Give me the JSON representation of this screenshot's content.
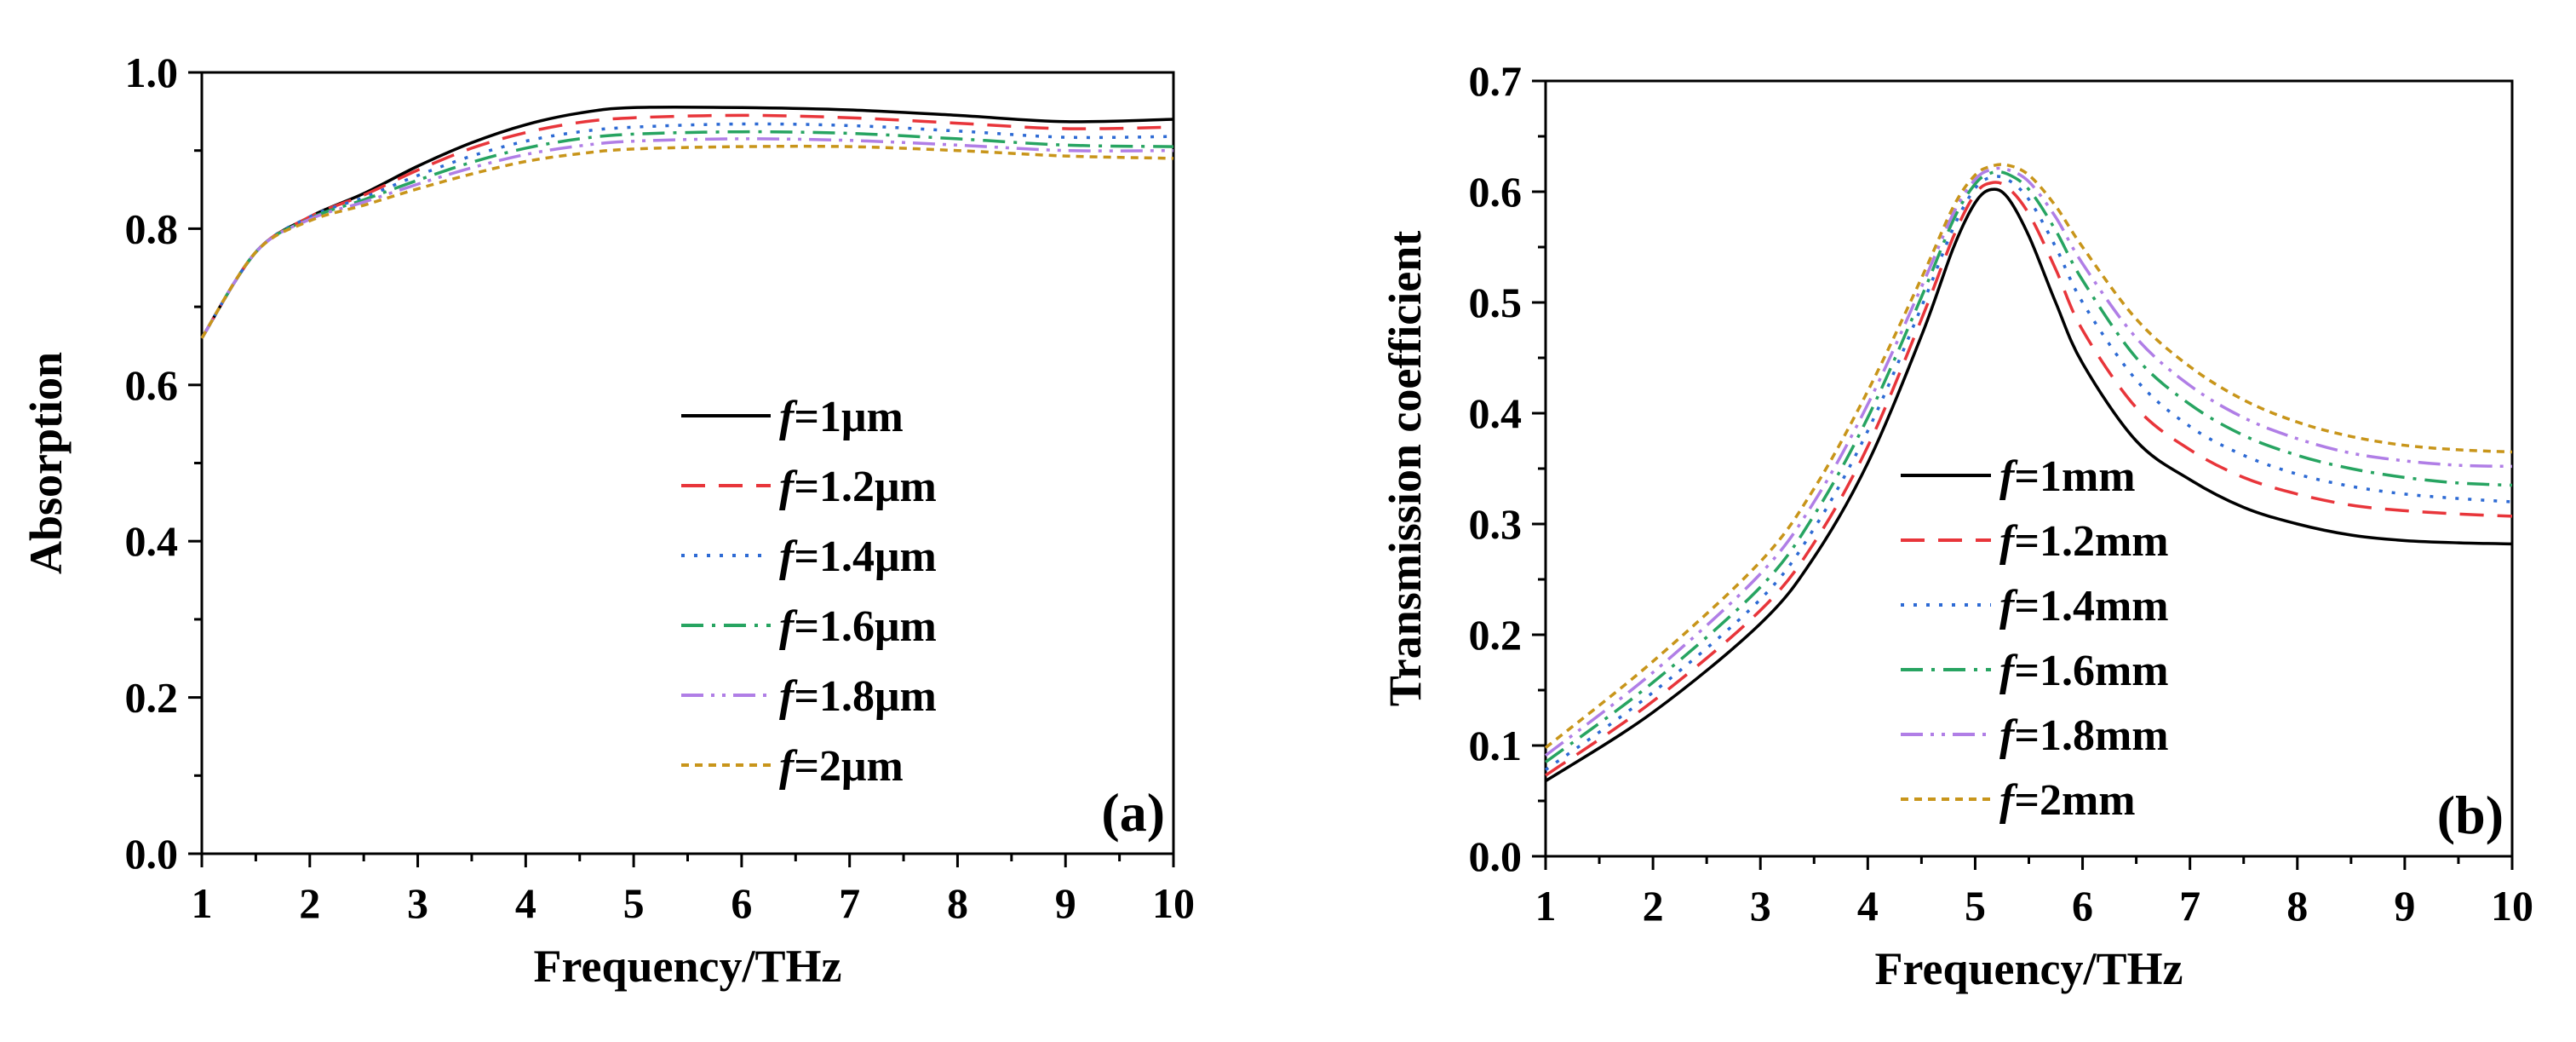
{
  "chart_data": [
    {
      "type": "line",
      "panel_label": "(a)",
      "xlabel": "Frequency/THz",
      "ylabel": "Absorption",
      "xlim": [
        1,
        10
      ],
      "ylim": [
        0.0,
        1.0
      ],
      "xticks": [
        1,
        2,
        3,
        4,
        5,
        6,
        7,
        8,
        9,
        10
      ],
      "xtick_labels": [
        "1",
        "2",
        "3",
        "4",
        "5",
        "6",
        "7",
        "8",
        "9",
        "10"
      ],
      "yticks": [
        0.0,
        0.2,
        0.4,
        0.6,
        0.8,
        1.0
      ],
      "ytick_labels": [
        "0.0",
        "0.2",
        "0.4",
        "0.6",
        "0.8",
        "1.0"
      ],
      "legend_position": "center-right",
      "x": [
        1,
        1.5,
        2,
        2.5,
        3,
        3.5,
        4,
        4.5,
        5,
        6,
        7,
        8,
        9,
        10
      ],
      "series": [
        {
          "name": "f",
          "label_rest": "=1μm",
          "color": "#000000",
          "dash": "",
          "values": [
            0.66,
            0.77,
            0.815,
            0.845,
            0.88,
            0.91,
            0.933,
            0.948,
            0.955,
            0.955,
            0.952,
            0.945,
            0.937,
            0.94
          ]
        },
        {
          "name": "f",
          "label_rest": "=1.2μm",
          "color": "#e8353a",
          "dash": "28,16",
          "values": [
            0.66,
            0.77,
            0.815,
            0.843,
            0.875,
            0.903,
            0.923,
            0.936,
            0.942,
            0.945,
            0.942,
            0.935,
            0.928,
            0.93
          ]
        },
        {
          "name": "f",
          "label_rest": "=1.4μm",
          "color": "#2d6ad4",
          "dash": "4,11",
          "values": [
            0.66,
            0.77,
            0.815,
            0.84,
            0.868,
            0.893,
            0.912,
            0.924,
            0.93,
            0.934,
            0.932,
            0.925,
            0.917,
            0.918
          ]
        },
        {
          "name": "f",
          "label_rest": "=1.6μm",
          "color": "#27a461",
          "dash": "26,10,4,10",
          "values": [
            0.66,
            0.77,
            0.813,
            0.837,
            0.862,
            0.885,
            0.903,
            0.915,
            0.921,
            0.924,
            0.922,
            0.915,
            0.907,
            0.905
          ]
        },
        {
          "name": "f",
          "label_rest": "=1.8μm",
          "color": "#b07ee6",
          "dash": "26,9,4,9,4,9",
          "values": [
            0.66,
            0.77,
            0.812,
            0.834,
            0.857,
            0.878,
            0.895,
            0.906,
            0.912,
            0.915,
            0.913,
            0.907,
            0.9,
            0.9
          ]
        },
        {
          "name": "f",
          "label_rest": "=2μm",
          "color": "#c8951a",
          "dash": "9,7",
          "values": [
            0.66,
            0.77,
            0.81,
            0.83,
            0.851,
            0.87,
            0.886,
            0.896,
            0.902,
            0.905,
            0.905,
            0.9,
            0.893,
            0.89
          ]
        }
      ]
    },
    {
      "type": "line",
      "panel_label": "(b)",
      "xlabel": "Frequency/THz",
      "ylabel": "Transmission coefficient",
      "xlim": [
        1,
        10
      ],
      "ylim": [
        0.0,
        0.7
      ],
      "xticks": [
        1,
        2,
        3,
        4,
        5,
        6,
        7,
        8,
        9,
        10
      ],
      "xtick_labels": [
        "1",
        "2",
        "3",
        "4",
        "5",
        "6",
        "7",
        "8",
        "9",
        "10"
      ],
      "yticks": [
        0.0,
        0.1,
        0.2,
        0.3,
        0.4,
        0.5,
        0.6,
        0.7
      ],
      "ytick_labels": [
        "0.0",
        "0.1",
        "0.2",
        "0.3",
        "0.4",
        "0.5",
        "0.6",
        "0.7"
      ],
      "legend_position": "center",
      "x": [
        1,
        2,
        3,
        3.5,
        4,
        4.5,
        4.8,
        5,
        5.15,
        5.3,
        5.5,
        5.75,
        6,
        6.5,
        7,
        7.5,
        8,
        8.5,
        9,
        9.5,
        10
      ],
      "series": [
        {
          "name": "f",
          "label_rest": "=1mm",
          "color": "#000000",
          "dash": "",
          "values": [
            0.068,
            0.13,
            0.21,
            0.27,
            0.355,
            0.47,
            0.55,
            0.59,
            0.602,
            0.595,
            0.56,
            0.5,
            0.445,
            0.375,
            0.34,
            0.315,
            0.3,
            0.29,
            0.285,
            0.283,
            0.282
          ]
        },
        {
          "name": "f",
          "label_rest": "=1.2mm",
          "color": "#e8353a",
          "dash": "28,16",
          "values": [
            0.073,
            0.14,
            0.222,
            0.283,
            0.37,
            0.485,
            0.56,
            0.598,
            0.608,
            0.604,
            0.58,
            0.53,
            0.475,
            0.405,
            0.367,
            0.342,
            0.327,
            0.317,
            0.312,
            0.309,
            0.307
          ]
        },
        {
          "name": "f",
          "label_rest": "=1.4mm",
          "color": "#2d6ad4",
          "dash": "4,11",
          "values": [
            0.078,
            0.148,
            0.232,
            0.296,
            0.384,
            0.496,
            0.568,
            0.603,
            0.613,
            0.611,
            0.593,
            0.55,
            0.5,
            0.43,
            0.388,
            0.362,
            0.345,
            0.334,
            0.327,
            0.323,
            0.32
          ]
        },
        {
          "name": "f",
          "label_rest": "=1.6mm",
          "color": "#27a461",
          "dash": "26,10,4,10",
          "values": [
            0.085,
            0.157,
            0.243,
            0.308,
            0.396,
            0.505,
            0.575,
            0.607,
            0.617,
            0.616,
            0.602,
            0.565,
            0.52,
            0.45,
            0.408,
            0.38,
            0.362,
            0.35,
            0.342,
            0.337,
            0.335
          ]
        },
        {
          "name": "f",
          "label_rest": "=1.8mm",
          "color": "#b07ee6",
          "dash": "26,9,4,9,4,9",
          "values": [
            0.091,
            0.166,
            0.255,
            0.32,
            0.408,
            0.514,
            0.581,
            0.611,
            0.62,
            0.62,
            0.609,
            0.577,
            0.535,
            0.468,
            0.425,
            0.396,
            0.377,
            0.364,
            0.357,
            0.353,
            0.352
          ]
        },
        {
          "name": "f",
          "label_rest": "=2mm",
          "color": "#c8951a",
          "dash": "9,7",
          "values": [
            0.098,
            0.176,
            0.266,
            0.332,
            0.42,
            0.522,
            0.587,
            0.615,
            0.623,
            0.624,
            0.615,
            0.587,
            0.55,
            0.485,
            0.442,
            0.412,
            0.392,
            0.379,
            0.371,
            0.367,
            0.365
          ]
        }
      ]
    }
  ]
}
